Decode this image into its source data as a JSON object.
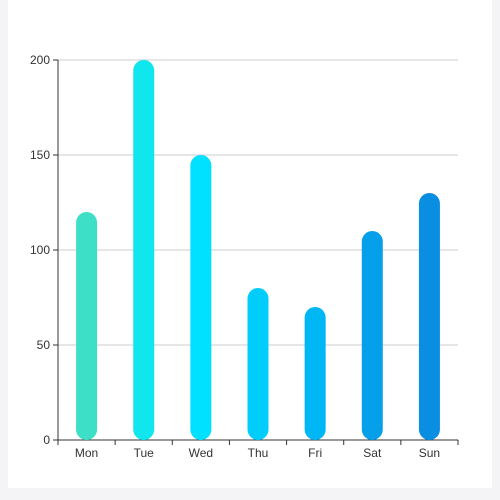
{
  "chart_data": {
    "type": "bar",
    "categories": [
      "Mon",
      "Tue",
      "Wed",
      "Thu",
      "Fri",
      "Sat",
      "Sun"
    ],
    "values": [
      120,
      200,
      150,
      80,
      70,
      110,
      130
    ],
    "bar_colors": [
      "#3de0c7",
      "#0fe6ee",
      "#00e0ff",
      "#00cdfa",
      "#00b7f5",
      "#069fe9",
      "#0a8ee2"
    ],
    "title": "",
    "xlabel": "",
    "ylabel": "",
    "ylim": [
      0,
      200
    ],
    "yticks": [
      0,
      50,
      100,
      150,
      200
    ],
    "grid": true,
    "legend": "none"
  }
}
